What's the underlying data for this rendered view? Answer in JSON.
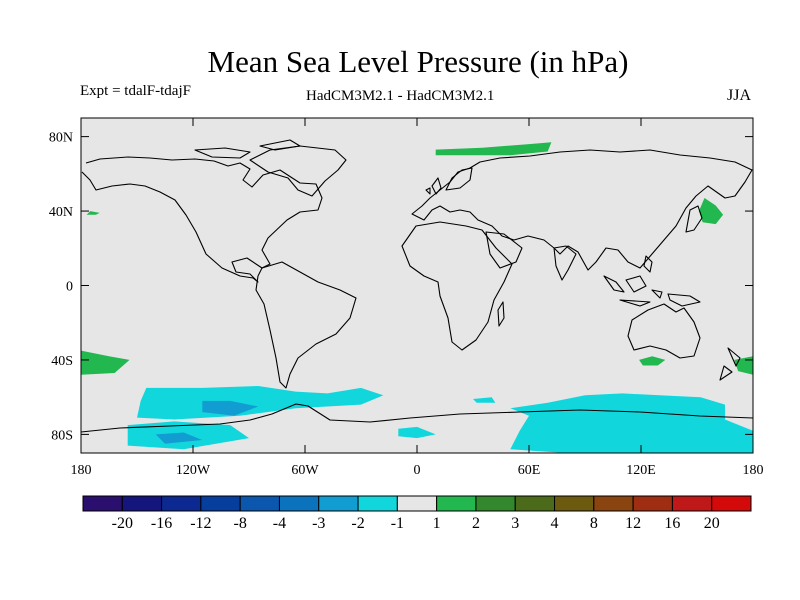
{
  "chart_data": {
    "type": "heatmap",
    "title": "Mean Sea Level Pressure (in hPa)",
    "subtitle_left": "Expt = tdalF-tdajF",
    "subtitle_center": "HadCM3M2.1 - HadCM3M2.1",
    "subtitle_right": "JJA",
    "projection": "cylindrical-equidistant",
    "xlim": [
      -180,
      180
    ],
    "ylim": [
      -90,
      90
    ],
    "x_ticks": [
      {
        "value": -180,
        "label": "180"
      },
      {
        "value": -120,
        "label": "120W"
      },
      {
        "value": -60,
        "label": "60W"
      },
      {
        "value": 0,
        "label": "0"
      },
      {
        "value": 60,
        "label": "60E"
      },
      {
        "value": 120,
        "label": "120E"
      },
      {
        "value": 180,
        "label": "180"
      }
    ],
    "y_ticks": [
      {
        "value": 80,
        "label": "80N"
      },
      {
        "value": 40,
        "label": "40N"
      },
      {
        "value": 0,
        "label": "0"
      },
      {
        "value": -40,
        "label": "40S"
      },
      {
        "value": -80,
        "label": "80S"
      }
    ],
    "colorbar": {
      "colors": [
        "#2a0f6e",
        "#14167e",
        "#0b2991",
        "#063e9e",
        "#0a57ad",
        "#0b72bd",
        "#129dd2",
        "#11d7dd",
        "#e6e6e6",
        "#22b84f",
        "#33882e",
        "#4c6b1a",
        "#6c5b0f",
        "#8a4410",
        "#9f2d12",
        "#bf1818",
        "#d40a0a"
      ],
      "labels": [
        "-20",
        "-16",
        "-12",
        "-8",
        "-4",
        "-3",
        "-2",
        "-1",
        "1",
        "2",
        "3",
        "4",
        "8",
        "12",
        "16",
        "20"
      ]
    },
    "anomalies": [
      {
        "name": "pacific-sw-positive",
        "color": "#22b84f",
        "points": [
          [
            -180,
            -35
          ],
          [
            -165,
            -38
          ],
          [
            -154,
            -40
          ],
          [
            -162,
            -47
          ],
          [
            -180,
            -48
          ]
        ]
      },
      {
        "name": "east-of-nz-positive",
        "color": "#22b84f",
        "points": [
          [
            170,
            -40
          ],
          [
            180,
            -38
          ],
          [
            180,
            -48
          ],
          [
            172,
            -46
          ]
        ]
      },
      {
        "name": "australia-south-positive",
        "color": "#22b84f",
        "points": [
          [
            119,
            -40
          ],
          [
            126,
            -38
          ],
          [
            133,
            -40
          ],
          [
            129,
            -43
          ],
          [
            121,
            -43
          ]
        ]
      },
      {
        "name": "kamchatka-positive",
        "color": "#22b84f",
        "points": [
          [
            154,
            47
          ],
          [
            160,
            43
          ],
          [
            164,
            38
          ],
          [
            160,
            33
          ],
          [
            153,
            34
          ],
          [
            151,
            40
          ]
        ]
      },
      {
        "name": "barents-positive",
        "color": "#22b84f",
        "points": [
          [
            10,
            73
          ],
          [
            35,
            74
          ],
          [
            60,
            76
          ],
          [
            72,
            77
          ],
          [
            70,
            72
          ],
          [
            50,
            70
          ],
          [
            25,
            70
          ],
          [
            10,
            70
          ]
        ]
      },
      {
        "name": "north-pacific-positive",
        "color": "#22b84f",
        "points": [
          [
            -175,
            40
          ],
          [
            -170,
            39
          ],
          [
            -172,
            38
          ],
          [
            -177,
            38
          ]
        ]
      },
      {
        "name": "amundsen-negative",
        "color": "#11d7dd",
        "points": [
          [
            -145,
            -55
          ],
          [
            -115,
            -55
          ],
          [
            -85,
            -54
          ],
          [
            -65,
            -57
          ],
          [
            -48,
            -58
          ],
          [
            -30,
            -55
          ],
          [
            -18,
            -59
          ],
          [
            -30,
            -64
          ],
          [
            -65,
            -66
          ],
          [
            -95,
            -70
          ],
          [
            -130,
            -72
          ],
          [
            -150,
            -71
          ],
          [
            -148,
            -62
          ]
        ]
      },
      {
        "name": "ross-sea-negative",
        "color": "#11d7dd",
        "points": [
          [
            -155,
            -75
          ],
          [
            -130,
            -73
          ],
          [
            -100,
            -75
          ],
          [
            -90,
            -82
          ],
          [
            -125,
            -88
          ],
          [
            -155,
            -86
          ]
        ]
      },
      {
        "name": "east-antarctic-negative",
        "color": "#11d7dd",
        "points": [
          [
            50,
            -66
          ],
          [
            70,
            -63
          ],
          [
            90,
            -59
          ],
          [
            110,
            -58
          ],
          [
            130,
            -59
          ],
          [
            152,
            -60
          ],
          [
            165,
            -64
          ],
          [
            165,
            -72
          ],
          [
            180,
            -78
          ],
          [
            180,
            -90
          ],
          [
            120,
            -90
          ],
          [
            80,
            -90
          ],
          [
            50,
            -88
          ],
          [
            55,
            -78
          ],
          [
            60,
            -70
          ]
        ]
      },
      {
        "name": "weddell-negative",
        "color": "#11d7dd",
        "points": [
          [
            -10,
            -77
          ],
          [
            0,
            -76
          ],
          [
            10,
            -80
          ],
          [
            0,
            -82
          ],
          [
            -10,
            -81
          ]
        ]
      },
      {
        "name": "africa-south-negative",
        "color": "#11d7dd",
        "points": [
          [
            30,
            -61
          ],
          [
            40,
            -60
          ],
          [
            42,
            -63
          ],
          [
            32,
            -63
          ]
        ]
      },
      {
        "name": "amundsen-core",
        "color": "#129dd2",
        "points": [
          [
            -115,
            -62
          ],
          [
            -100,
            -62
          ],
          [
            -85,
            -65
          ],
          [
            -98,
            -70
          ],
          [
            -115,
            -68
          ]
        ]
      },
      {
        "name": "ross-core",
        "color": "#129dd2",
        "points": [
          [
            -140,
            -80
          ],
          [
            -125,
            -79
          ],
          [
            -115,
            -83
          ],
          [
            -135,
            -85
          ]
        ]
      }
    ]
  }
}
